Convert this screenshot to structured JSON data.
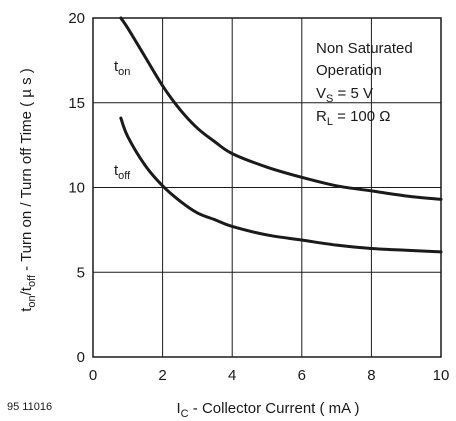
{
  "figure_id": "95 11016",
  "chart_data": {
    "type": "line",
    "title": "",
    "xlabel": {
      "main": "I",
      "sub": "C",
      "rest": " - Collector Current ( mA )"
    },
    "ylabel": {
      "t1": "t",
      "s1": "on",
      "mid": "/t",
      "s2": "off",
      "rest": " - Turn on / Turn off Time ( µ s )"
    },
    "xlim": [
      0,
      10
    ],
    "ylim": [
      0,
      20
    ],
    "xticks": [
      0,
      2,
      4,
      6,
      8,
      10
    ],
    "yticks": [
      0,
      5,
      10,
      15,
      20
    ],
    "grid": true,
    "series": [
      {
        "name": "t_on",
        "label_main": "t",
        "label_sub": "on",
        "x": [
          0.8,
          1.0,
          1.5,
          2.0,
          2.5,
          3.0,
          3.5,
          4.0,
          5.0,
          6.0,
          7.0,
          8.0,
          9.0,
          10.0
        ],
        "y": [
          20.0,
          19.4,
          17.7,
          16.0,
          14.6,
          13.5,
          12.7,
          12.0,
          11.2,
          10.6,
          10.1,
          9.8,
          9.5,
          9.3
        ]
      },
      {
        "name": "t_off",
        "label_main": "t",
        "label_sub": "off",
        "x": [
          0.8,
          1.0,
          1.5,
          2.0,
          2.5,
          3.0,
          3.5,
          4.0,
          5.0,
          6.0,
          7.0,
          8.0,
          9.0,
          10.0
        ],
        "y": [
          14.1,
          13.0,
          11.3,
          10.1,
          9.2,
          8.5,
          8.1,
          7.7,
          7.2,
          6.9,
          6.6,
          6.4,
          6.3,
          6.2
        ]
      }
    ],
    "annotations": {
      "line1": "Non Saturated",
      "line2": "Operation",
      "vs": {
        "main": "V",
        "sub": "S",
        "rest": " = 5 V"
      },
      "rl": {
        "main": "R",
        "sub": "L",
        "rest": " = 100 Ω"
      }
    }
  }
}
